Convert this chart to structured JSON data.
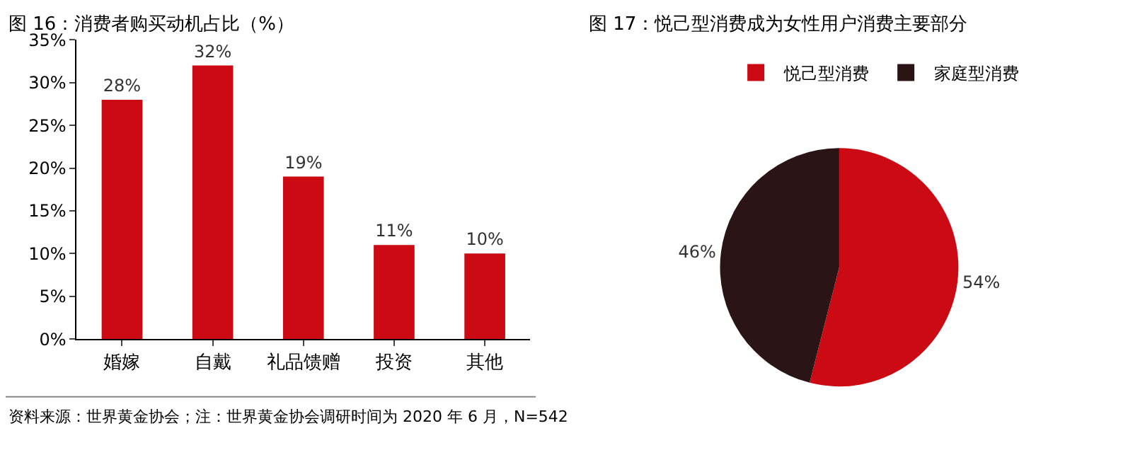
{
  "chart_data": [
    {
      "type": "bar",
      "title": "图 16：消费者购买动机占比（%）",
      "categories": [
        "婚嫁",
        "自戴",
        "礼品馈赠",
        "投资",
        "其他"
      ],
      "values": [
        28,
        32,
        19,
        11,
        10
      ],
      "color": "#cc0a14",
      "data_labels": true,
      "value_labels": [
        "28%",
        "32%",
        "19%",
        "11%",
        "10%"
      ],
      "ylim": [
        0,
        35
      ],
      "yticks": [
        {
          "value": 0,
          "label": "0%"
        },
        {
          "value": 5,
          "label": "5%"
        },
        {
          "value": 10,
          "label": "10%"
        },
        {
          "value": 15,
          "label": "15%"
        },
        {
          "value": 20,
          "label": "20%"
        },
        {
          "value": 25,
          "label": "25%"
        },
        {
          "value": 30,
          "label": "30%"
        },
        {
          "value": 35,
          "label": "35%"
        }
      ],
      "annotations": [
        "资料来源：世界黄金协会；注：世界黄金协会调研时间为 2020 年 6 月，N=542"
      ]
    },
    {
      "type": "pie",
      "title": "图 17：悦己型消费成为女性用户消费主要部分",
      "categories": [
        "悦己型消费",
        "家庭型消费"
      ],
      "values": [
        54,
        46
      ],
      "colors": [
        "#cc0a14",
        "#2a1416"
      ],
      "legend": "top",
      "data_labels": true,
      "value_labels": [
        "54%",
        "46%"
      ]
    }
  ]
}
